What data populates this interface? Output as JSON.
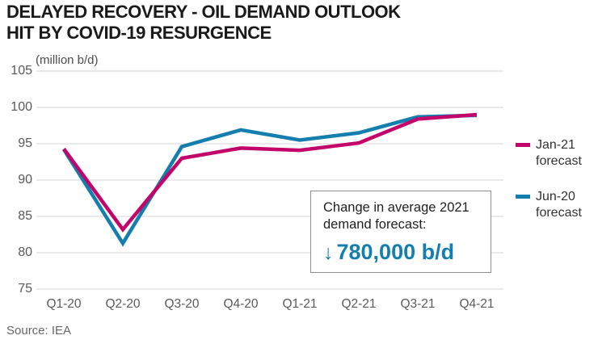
{
  "header": {
    "title_line1": "DELAYED RECOVERY - OIL DEMAND OUTLOOK",
    "title_line2": "HIT BY COVID-19 RESURGENCE"
  },
  "chart_data": {
    "type": "line",
    "title": "Delayed recovery - oil demand outlook hit by COVID-19 resurgence",
    "unit_label": "(million b/d)",
    "categories": [
      "Q1-20",
      "Q2-20",
      "Q3-20",
      "Q4-20",
      "Q1-21",
      "Q2-21",
      "Q3-21",
      "Q4-21"
    ],
    "series": [
      {
        "name": "Jun-20 forecast",
        "color": "#147EAE",
        "values": [
          94.2,
          81.3,
          94.6,
          96.9,
          95.5,
          96.5,
          98.7,
          98.9
        ]
      },
      {
        "name": "Jan-21 forecast",
        "color": "#C3056B",
        "values": [
          94.3,
          83.2,
          93.0,
          94.4,
          94.1,
          95.1,
          98.4,
          99.0
        ]
      }
    ],
    "ylim": [
      75,
      105
    ],
    "yticks": [
      "105",
      "100",
      "95",
      "90",
      "85",
      "80",
      "75"
    ],
    "grid": true,
    "gridline_color": "#dedede",
    "legend_position": "right"
  },
  "legend": {
    "items": [
      {
        "line1": "Jan-21",
        "line2": "forecast",
        "color": "#C3056B"
      },
      {
        "line1": "Jun-20",
        "line2": "forecast",
        "color": "#147EAE"
      }
    ]
  },
  "annotation": {
    "line1": "Change in average 2021",
    "line2": "demand forecast:",
    "arrow": "↓",
    "value": "780,000 b/d",
    "accent_color": "#147EAE"
  },
  "source": "Source: IEA"
}
